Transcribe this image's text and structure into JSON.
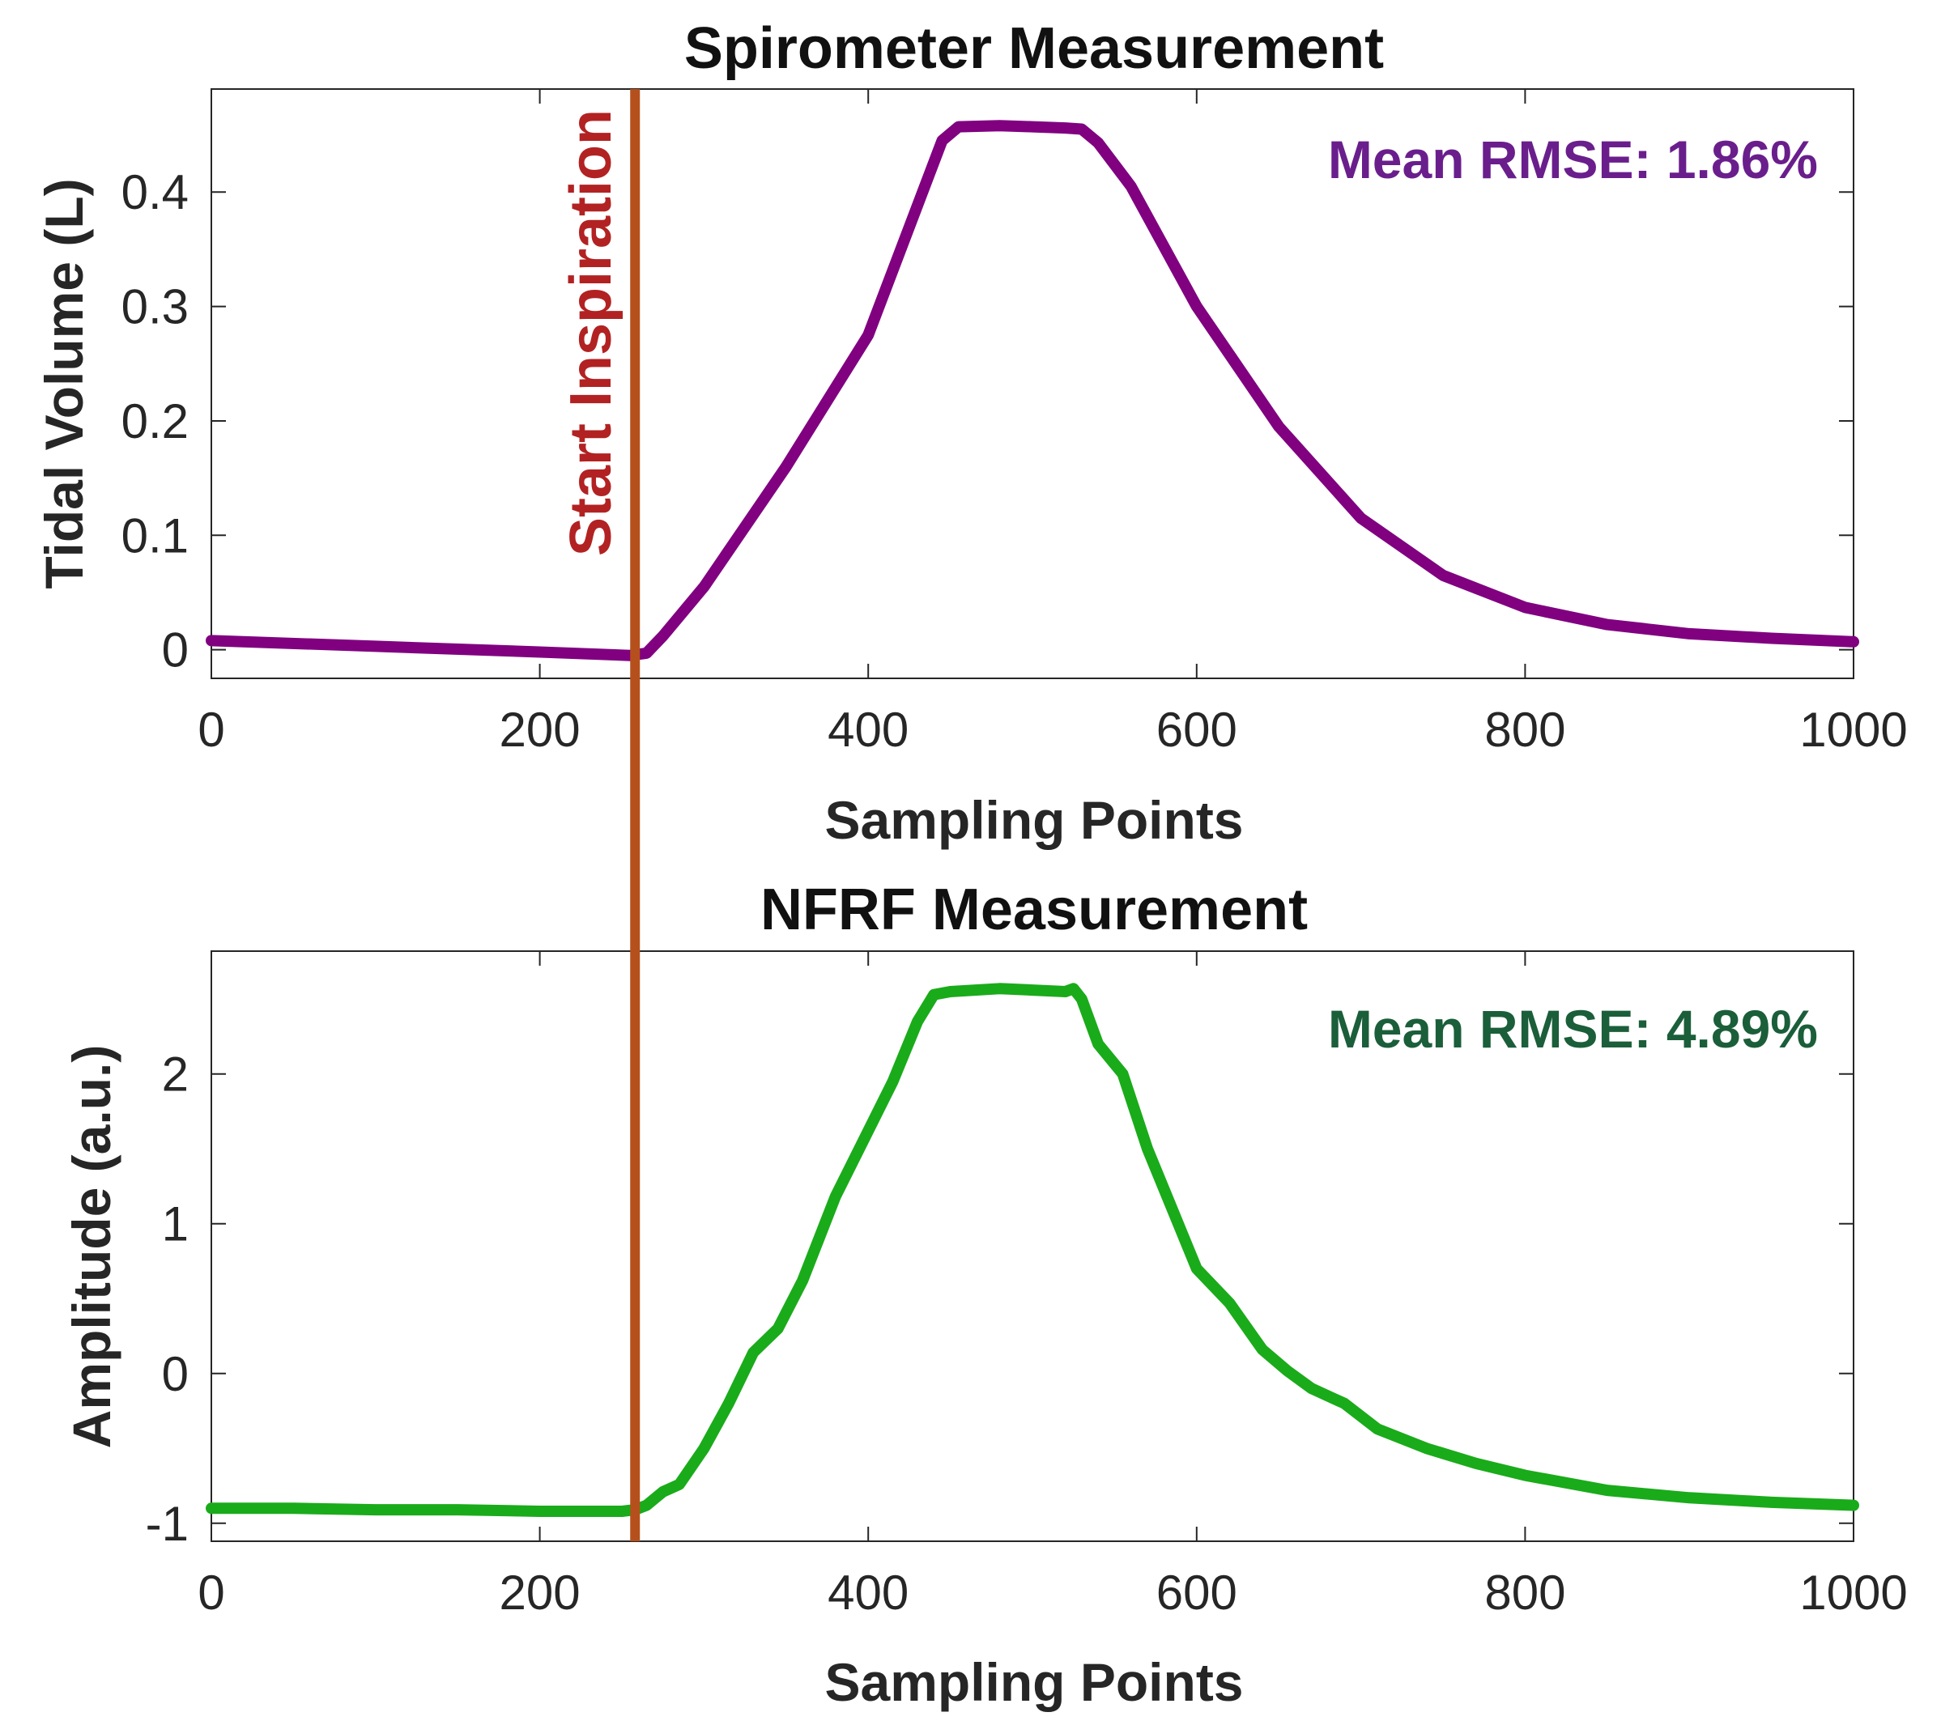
{
  "chart_data": [
    {
      "type": "line",
      "title": "Spirometer Measurement",
      "xlabel": "Sampling Points",
      "ylabel": "Tidal Volume (L)",
      "xlim": [
        0,
        1000
      ],
      "ylim": [
        -0.025,
        0.49
      ],
      "xticks": [
        0,
        200,
        400,
        600,
        800,
        1000
      ],
      "xtick_labels": [
        "0",
        "200",
        "400",
        "600",
        "800",
        "1000"
      ],
      "yticks": [
        0,
        0.1,
        0.2,
        0.3,
        0.4
      ],
      "ytick_labels": [
        "0",
        "0.1",
        "0.2",
        "0.3",
        "0.4"
      ],
      "grid": false,
      "annotation": {
        "text": "Mean RMSE: 1.86%",
        "color": "#6a1e8c"
      },
      "series": [
        {
          "color": "#800080",
          "x": [
            0,
            100,
            200,
            255,
            265,
            275,
            300,
            350,
            400,
            445,
            455,
            480,
            500,
            520,
            530,
            540,
            560,
            600,
            650,
            700,
            750,
            800,
            850,
            900,
            950,
            1000
          ],
          "y": [
            0.008,
            0.003,
            -0.002,
            -0.005,
            -0.003,
            0.012,
            0.055,
            0.16,
            0.275,
            0.445,
            0.457,
            0.458,
            0.457,
            0.456,
            0.455,
            0.443,
            0.405,
            0.3,
            0.195,
            0.115,
            0.065,
            0.037,
            0.022,
            0.014,
            0.01,
            0.007
          ]
        }
      ]
    },
    {
      "type": "line",
      "title": "NFRF Measurement",
      "xlabel": "Sampling Points",
      "ylabel": "Amplitude (a.u.)",
      "xlim": [
        0,
        1000
      ],
      "ylim": [
        -1.12,
        2.82
      ],
      "xticks": [
        0,
        200,
        400,
        600,
        800,
        1000
      ],
      "xtick_labels": [
        "0",
        "200",
        "400",
        "600",
        "800",
        "1000"
      ],
      "yticks": [
        -1,
        0,
        1,
        2
      ],
      "ytick_labels": [
        "-1",
        "0",
        "1",
        "2"
      ],
      "grid": false,
      "annotation": {
        "text": "Mean RMSE: 4.89%",
        "color": "#1b5e3a"
      },
      "series": [
        {
          "color": "#1aab1a",
          "x": [
            0,
            50,
            100,
            150,
            200,
            250,
            258,
            265,
            275,
            285,
            300,
            315,
            330,
            345,
            360,
            380,
            400,
            415,
            430,
            440,
            450,
            480,
            500,
            520,
            525,
            530,
            540,
            555,
            570,
            585,
            600,
            620,
            640,
            655,
            670,
            690,
            710,
            740,
            770,
            800,
            850,
            900,
            950,
            1000
          ],
          "y": [
            -0.9,
            -0.9,
            -0.91,
            -0.91,
            -0.92,
            -0.92,
            -0.91,
            -0.88,
            -0.79,
            -0.74,
            -0.5,
            -0.2,
            0.14,
            0.3,
            0.62,
            1.18,
            1.62,
            1.95,
            2.35,
            2.53,
            2.55,
            2.57,
            2.56,
            2.55,
            2.57,
            2.5,
            2.2,
            2.0,
            1.5,
            1.1,
            0.7,
            0.47,
            0.16,
            0.02,
            -0.1,
            -0.2,
            -0.37,
            -0.5,
            -0.6,
            -0.68,
            -0.78,
            -0.83,
            -0.86,
            -0.88
          ]
        }
      ]
    }
  ],
  "marker": {
    "x": 258,
    "text": "Start Inspiration",
    "line_color": "#b5501c",
    "text_color": "#b22222"
  }
}
